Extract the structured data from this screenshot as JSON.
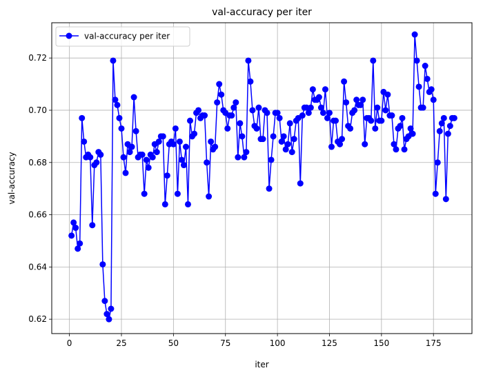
{
  "chart_data": {
    "type": "line",
    "title": "val-accuracy per iter",
    "xlabel": "iter",
    "ylabel": "val-accuracy",
    "xlim": [
      -8.5,
      193.5
    ],
    "ylim": [
      0.6145,
      0.7335
    ],
    "xticks": [
      0,
      25,
      50,
      75,
      100,
      125,
      150,
      175
    ],
    "yticks": [
      0.62,
      0.64,
      0.66,
      0.68,
      0.7,
      0.72
    ],
    "ytick_labels": [
      "0.62",
      "0.64",
      "0.66",
      "0.68",
      "0.70",
      "0.72"
    ],
    "grid": true,
    "legend_position": "upper-left",
    "series": [
      {
        "name": "val-accuracy per iter",
        "color": "#0000ff",
        "marker": "circle",
        "x": [
          1,
          2,
          3,
          4,
          5,
          6,
          7,
          8,
          9,
          10,
          11,
          12,
          13,
          14,
          15,
          16,
          17,
          18,
          19,
          20,
          21,
          22,
          23,
          24,
          25,
          26,
          27,
          28,
          29,
          30,
          31,
          32,
          33,
          34,
          35,
          36,
          37,
          38,
          39,
          40,
          41,
          42,
          43,
          44,
          45,
          46,
          47,
          48,
          49,
          50,
          51,
          52,
          53,
          54,
          55,
          56,
          57,
          58,
          59,
          60,
          61,
          62,
          63,
          64,
          65,
          66,
          67,
          68,
          69,
          70,
          71,
          72,
          73,
          74,
          75,
          76,
          77,
          78,
          79,
          80,
          81,
          82,
          83,
          84,
          85,
          86,
          87,
          88,
          89,
          90,
          91,
          92,
          93,
          94,
          95,
          96,
          97,
          98,
          99,
          100,
          101,
          102,
          103,
          104,
          105,
          106,
          107,
          108,
          109,
          110,
          111,
          112,
          113,
          114,
          115,
          116,
          117,
          118,
          119,
          120,
          121,
          122,
          123,
          124,
          125,
          126,
          127,
          128,
          129,
          130,
          131,
          132,
          133,
          134,
          135,
          136,
          137,
          138,
          139,
          140,
          141,
          142,
          143,
          144,
          145,
          146,
          147,
          148,
          149,
          150,
          151,
          152,
          153,
          154,
          155,
          156,
          157,
          158,
          159,
          160,
          161,
          162,
          163,
          164,
          165,
          166,
          167,
          168,
          169,
          170,
          171,
          172,
          173,
          174,
          175,
          176,
          177,
          178,
          179,
          180,
          181,
          182,
          183,
          184,
          185
        ],
        "y": [
          0.652,
          0.657,
          0.655,
          0.647,
          0.649,
          0.697,
          0.688,
          0.682,
          0.683,
          0.682,
          0.656,
          0.679,
          0.68,
          0.684,
          0.683,
          0.641,
          0.627,
          0.622,
          0.62,
          0.624,
          0.719,
          0.704,
          0.702,
          0.697,
          0.693,
          0.682,
          0.676,
          0.687,
          0.684,
          0.686,
          0.705,
          0.692,
          0.682,
          0.683,
          0.683,
          0.668,
          0.681,
          0.678,
          0.683,
          0.682,
          0.687,
          0.684,
          0.688,
          0.69,
          0.69,
          0.664,
          0.675,
          0.687,
          0.688,
          0.687,
          0.693,
          0.668,
          0.688,
          0.681,
          0.679,
          0.686,
          0.664,
          0.696,
          0.69,
          0.691,
          0.699,
          0.7,
          0.697,
          0.698,
          0.698,
          0.68,
          0.667,
          0.688,
          0.685,
          0.686,
          0.703,
          0.71,
          0.706,
          0.7,
          0.699,
          0.693,
          0.698,
          0.698,
          0.701,
          0.703,
          0.682,
          0.695,
          0.69,
          0.682,
          0.684,
          0.719,
          0.711,
          0.7,
          0.694,
          0.693,
          0.701,
          0.689,
          0.689,
          0.7,
          0.699,
          0.67,
          0.681,
          0.69,
          0.699,
          0.699,
          0.697,
          0.688,
          0.69,
          0.685,
          0.687,
          0.695,
          0.684,
          0.689,
          0.696,
          0.697,
          0.672,
          0.698,
          0.701,
          0.701,
          0.699,
          0.701,
          0.708,
          0.704,
          0.704,
          0.705,
          0.701,
          0.699,
          0.708,
          0.697,
          0.699,
          0.686,
          0.696,
          0.696,
          0.688,
          0.687,
          0.689,
          0.711,
          0.703,
          0.694,
          0.693,
          0.699,
          0.7,
          0.704,
          0.702,
          0.702,
          0.704,
          0.687,
          0.697,
          0.697,
          0.696,
          0.719,
          0.693,
          0.701,
          0.696,
          0.696,
          0.707,
          0.7,
          0.706,
          0.698,
          0.698,
          0.687,
          0.685,
          0.693,
          0.694,
          0.697,
          0.685,
          0.689,
          0.69,
          0.693,
          0.691,
          0.729,
          0.719,
          0.709,
          0.701,
          0.701,
          0.717,
          0.712,
          0.707,
          0.708,
          0.704,
          0.668,
          0.68,
          0.692,
          0.695,
          0.697,
          0.666,
          0.691,
          0.694,
          0.697,
          0.697
        ]
      }
    ]
  }
}
